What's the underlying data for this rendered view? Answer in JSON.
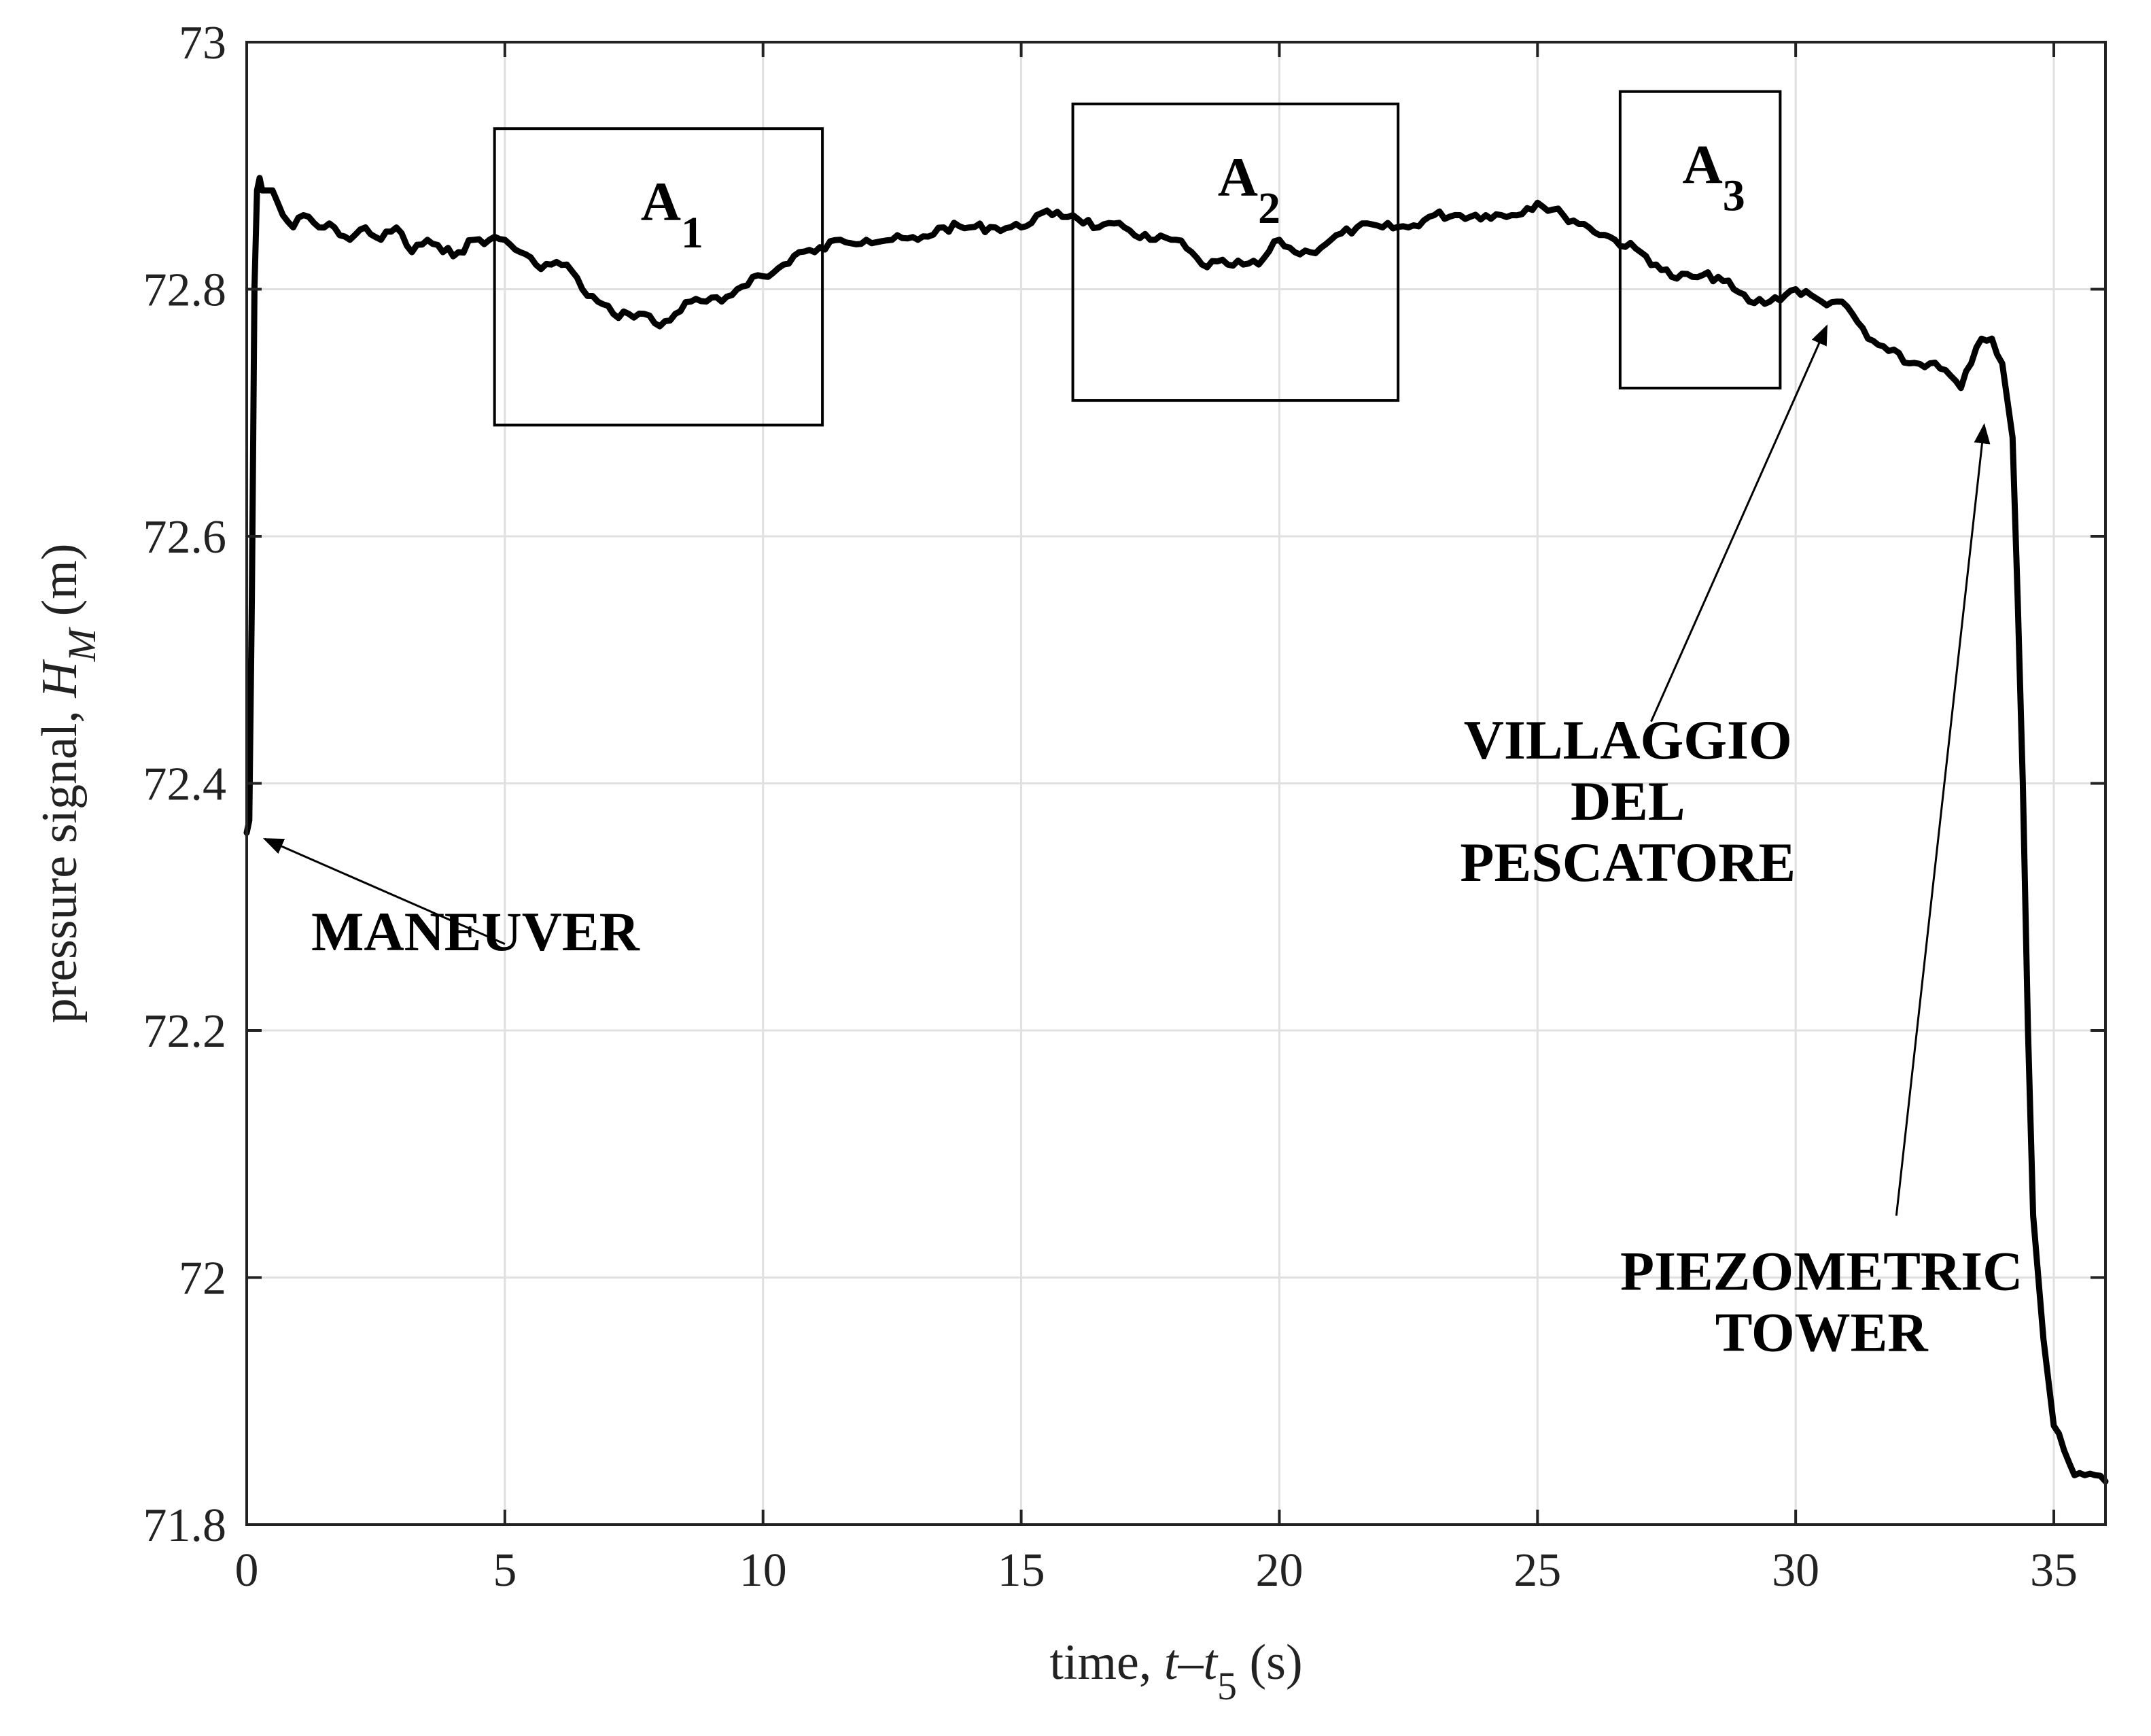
{
  "chart_data": {
    "type": "line",
    "xlabel": {
      "prefix": "time, ",
      "var": "t",
      "dash": "–",
      "var2": "t",
      "sub": "5",
      "unit": " (s)"
    },
    "ylabel": {
      "prefix": "pressure signal, ",
      "var": "H",
      "sub": "M",
      "unit": " (m)"
    },
    "xlim": [
      0,
      36
    ],
    "ylim": [
      71.8,
      73.0
    ],
    "xticks": [
      0,
      5,
      10,
      15,
      20,
      25,
      30,
      35
    ],
    "yticks": [
      71.8,
      72,
      72.2,
      72.4,
      72.6,
      72.8,
      73
    ],
    "ytick_labels": [
      "71.8",
      "72",
      "72.2",
      "72.4",
      "72.6",
      "72.8",
      "73"
    ],
    "grid": true,
    "series": [
      {
        "name": "pressure signal",
        "color": "#000000",
        "x": [
          0,
          0.05,
          0.1,
          0.15,
          0.2,
          0.25,
          0.3,
          0.4,
          0.5,
          0.7,
          0.9,
          1.1,
          1.4,
          1.7,
          2.0,
          2.3,
          2.6,
          2.9,
          3.2,
          3.5,
          3.8,
          4.1,
          4.4,
          4.7,
          5.0,
          5.3,
          5.6,
          5.9,
          6.2,
          6.5,
          6.8,
          7.1,
          7.4,
          7.7,
          8.0,
          8.3,
          8.6,
          8.9,
          9.2,
          9.5,
          9.8,
          10.1,
          10.4,
          10.7,
          11.0,
          11.5,
          12.0,
          12.5,
          13.0,
          13.5,
          14.0,
          14.5,
          15.0,
          15.3,
          15.6,
          16.0,
          16.5,
          17.0,
          17.5,
          18.0,
          18.5,
          19.0,
          19.3,
          19.6,
          20.0,
          20.3,
          20.6,
          21.0,
          21.5,
          22.0,
          22.5,
          23.0,
          23.5,
          24.0,
          24.5,
          25.0,
          25.5,
          26.0,
          26.5,
          27.0,
          27.3,
          27.6,
          28.0,
          28.5,
          28.8,
          29.1,
          29.5,
          30.0,
          30.5,
          30.8,
          31.1,
          31.4,
          31.8,
          32.2,
          32.6,
          33.0,
          33.2,
          33.4,
          33.6,
          33.8,
          34.0,
          34.1,
          34.2,
          34.3,
          34.4,
          34.5,
          34.6,
          34.8,
          35.0,
          35.2,
          35.4,
          35.6,
          35.8,
          36.0
        ],
        "values": [
          72.36,
          72.37,
          72.55,
          72.8,
          72.88,
          72.89,
          72.88,
          72.88,
          72.88,
          72.86,
          72.85,
          72.86,
          72.85,
          72.85,
          72.84,
          72.85,
          72.84,
          72.85,
          72.83,
          72.84,
          72.83,
          72.83,
          72.84,
          72.84,
          72.84,
          72.83,
          72.82,
          72.82,
          72.82,
          72.8,
          72.79,
          72.78,
          72.78,
          72.78,
          72.77,
          72.78,
          72.79,
          72.79,
          72.79,
          72.8,
          72.81,
          72.81,
          72.82,
          72.83,
          72.83,
          72.84,
          72.84,
          72.84,
          72.84,
          72.85,
          72.85,
          72.85,
          72.85,
          72.86,
          72.86,
          72.86,
          72.85,
          72.85,
          72.84,
          72.84,
          72.82,
          72.82,
          72.82,
          72.82,
          72.84,
          72.83,
          72.83,
          72.84,
          72.85,
          72.85,
          72.85,
          72.86,
          72.86,
          72.86,
          72.86,
          72.87,
          72.86,
          72.85,
          72.84,
          72.83,
          72.82,
          72.81,
          72.81,
          72.81,
          72.8,
          72.79,
          72.79,
          72.8,
          72.79,
          72.79,
          72.78,
          72.76,
          72.75,
          72.74,
          72.74,
          72.73,
          72.72,
          72.74,
          72.76,
          72.76,
          72.74,
          72.71,
          72.68,
          72.55,
          72.4,
          72.2,
          72.05,
          71.95,
          71.88,
          71.86,
          71.84,
          71.84,
          71.84,
          71.835
        ]
      }
    ],
    "boxes": [
      {
        "label": "A",
        "sub": "1",
        "x0": 4.8,
        "x1": 11.15,
        "y0": 72.69,
        "y1": 72.93
      },
      {
        "label": "A",
        "sub": "2",
        "x0": 16.0,
        "x1": 22.3,
        "y0": 72.71,
        "y1": 72.95
      },
      {
        "label": "A",
        "sub": "3",
        "x0": 26.6,
        "x1": 29.7,
        "y0": 72.72,
        "y1": 72.96
      }
    ],
    "annotations": [
      {
        "lines": [
          "MANEUVER"
        ],
        "text_x": 1.25,
        "text_y": 72.265,
        "anchor": "start",
        "arrow_from": [
          5.0,
          72.27
        ],
        "arrow_to": [
          0.35,
          72.355
        ]
      },
      {
        "lines": [
          "VILLAGGIO",
          "DEL",
          "PESCATORE"
        ],
        "text_x": 26.75,
        "text_y": 72.42,
        "anchor": "middle",
        "arrow_from": [
          27.2,
          72.45
        ],
        "arrow_to": [
          30.6,
          72.77
        ]
      },
      {
        "lines": [
          "PIEZOMETRIC",
          "TOWER"
        ],
        "text_x": 30.5,
        "text_y": 71.99,
        "anchor": "middle",
        "arrow_from": [
          31.95,
          72.05
        ],
        "arrow_to": [
          33.65,
          72.69
        ]
      }
    ]
  }
}
